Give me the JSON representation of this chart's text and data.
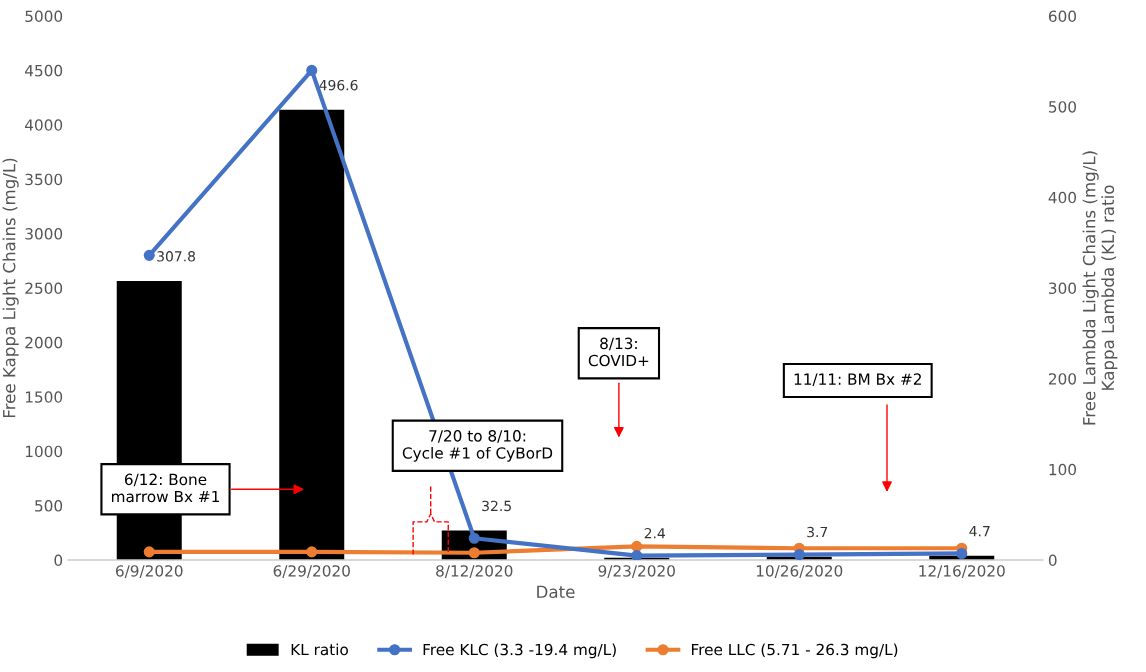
{
  "chart_data": {
    "type": "bar",
    "xlabel": "Date",
    "ylabel": "Free Kappa Light Chains (mg/L)",
    "y2label": "Free Lambda Light Chains (mg/L)\nKappa Lambda (KL) ratio",
    "categories": [
      "6/9/2020",
      "6/29/2020",
      "8/12/2020",
      "9/23/2020",
      "10/26/2020",
      "12/16/2020"
    ],
    "series": [
      {
        "name": "KL ratio",
        "axis": "y2",
        "color": "#000000",
        "values": [
          307.8,
          496.6,
          32.5,
          2.4,
          3.7,
          4.7
        ],
        "data_labels": true
      },
      {
        "name": "Free KLC (3.3 -19.4 mg/L)",
        "type": "line",
        "axis": "y",
        "color": "#4472c4",
        "marker": "circle",
        "values": [
          2800,
          4500,
          200,
          40,
          50,
          60
        ]
      },
      {
        "name": "Free LLC (5.71 - 26.3 mg/L)",
        "type": "line",
        "axis": "y2",
        "color": "#ed7d31",
        "marker": "circle",
        "values": [
          9,
          9,
          8,
          15,
          13,
          13
        ]
      }
    ],
    "ylim": [
      0,
      5000
    ],
    "yticks": [
      0,
      500,
      1000,
      1500,
      2000,
      2500,
      3000,
      3500,
      4000,
      4500,
      5000
    ],
    "y2lim": [
      0,
      600
    ],
    "y2ticks": [
      0,
      100,
      200,
      300,
      400,
      500,
      600
    ],
    "grid": false,
    "legend": "bottom",
    "annotations": [
      "6/12: Bone\nmarrow Bx #1",
      "7/20 to 8/10:\nCycle #1 of CyBorD",
      "8/13:\nCOVID+",
      "11/11: BM Bx #2"
    ]
  }
}
